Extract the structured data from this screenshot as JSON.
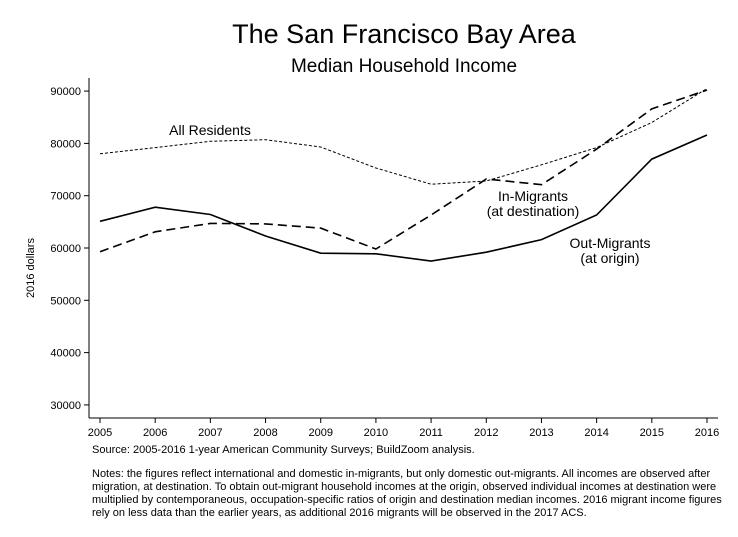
{
  "chart_data": {
    "type": "line",
    "title": "The San Francisco Bay Area",
    "subtitle": "Median Household Income",
    "ylabel": "2016 dollars",
    "xlabel": "",
    "x": [
      2005,
      2006,
      2007,
      2008,
      2009,
      2010,
      2011,
      2012,
      2013,
      2014,
      2015,
      2016
    ],
    "xlim": [
      2005,
      2016
    ],
    "ylim": [
      27500,
      92500
    ],
    "yticks": [
      30000,
      40000,
      50000,
      60000,
      70000,
      80000,
      90000
    ],
    "grid": false,
    "legend": "none",
    "series": [
      {
        "name": "All Residents",
        "style": "short-dash",
        "color": "#000000",
        "values": [
          78000,
          79200,
          80400,
          80700,
          79300,
          75300,
          72200,
          72800,
          75900,
          79200,
          84000,
          90500
        ]
      },
      {
        "name_lines": [
          "In-Migrants",
          "(at destination)"
        ],
        "style": "long-dash",
        "color": "#000000",
        "values": [
          59300,
          63100,
          64700,
          64600,
          63800,
          59800,
          66300,
          73200,
          72100,
          78900,
          86600,
          90200
        ]
      },
      {
        "name_lines": [
          "Out-Migrants",
          "(at origin)"
        ],
        "style": "solid",
        "color": "#000000",
        "values": [
          65100,
          67800,
          66400,
          62300,
          59000,
          58900,
          57500,
          59200,
          61600,
          66300,
          77000,
          81600
        ]
      }
    ]
  },
  "source": "Source: 2005-2016 1-year American Community Surveys; BuildZoom analysis.",
  "notes": "Notes: the figures reflect international and domestic in-migrants, but only domestic out-migrants. All incomes are observed after migration, at destination. To obtain out-migrant household incomes at the origin, observed individual incomes at destination were multiplied by contemporaneous, occupation-specific ratios of origin and destination median incomes. 2016 migrant income figures rely on less data than the earlier years, as additional 2016 migrants will be observed in the 2017 ACS."
}
